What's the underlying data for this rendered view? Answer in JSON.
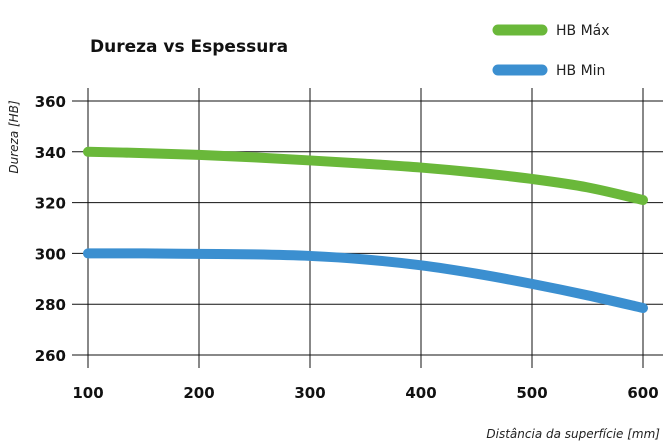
{
  "chart_data": {
    "type": "line",
    "title": "Dureza vs Espessura",
    "xlabel": "Distância da superfície [mm]",
    "ylabel": "Dureza [HB]",
    "x": [
      100,
      150,
      200,
      250,
      300,
      350,
      400,
      450,
      500,
      550,
      600
    ],
    "xlim": [
      100,
      600
    ],
    "ylim": [
      260,
      360
    ],
    "xticks": [
      "100",
      "200",
      "300",
      "400",
      "500",
      "600"
    ],
    "yticks": [
      "360",
      "340",
      "320",
      "300",
      "280",
      "260"
    ],
    "grid": true,
    "legend_position": "top-right",
    "series": [
      {
        "name": "HB Máx",
        "color": "#6ab83a",
        "values": [
          340,
          339.5,
          338.8,
          337.8,
          336.6,
          335.3,
          333.8,
          331.8,
          329.3,
          326,
          321
        ]
      },
      {
        "name": "HB Min",
        "color": "#3b8fd0",
        "values": [
          300,
          300,
          299.8,
          299.6,
          299,
          297.6,
          295.3,
          292,
          288,
          283.5,
          278.5
        ]
      }
    ]
  }
}
